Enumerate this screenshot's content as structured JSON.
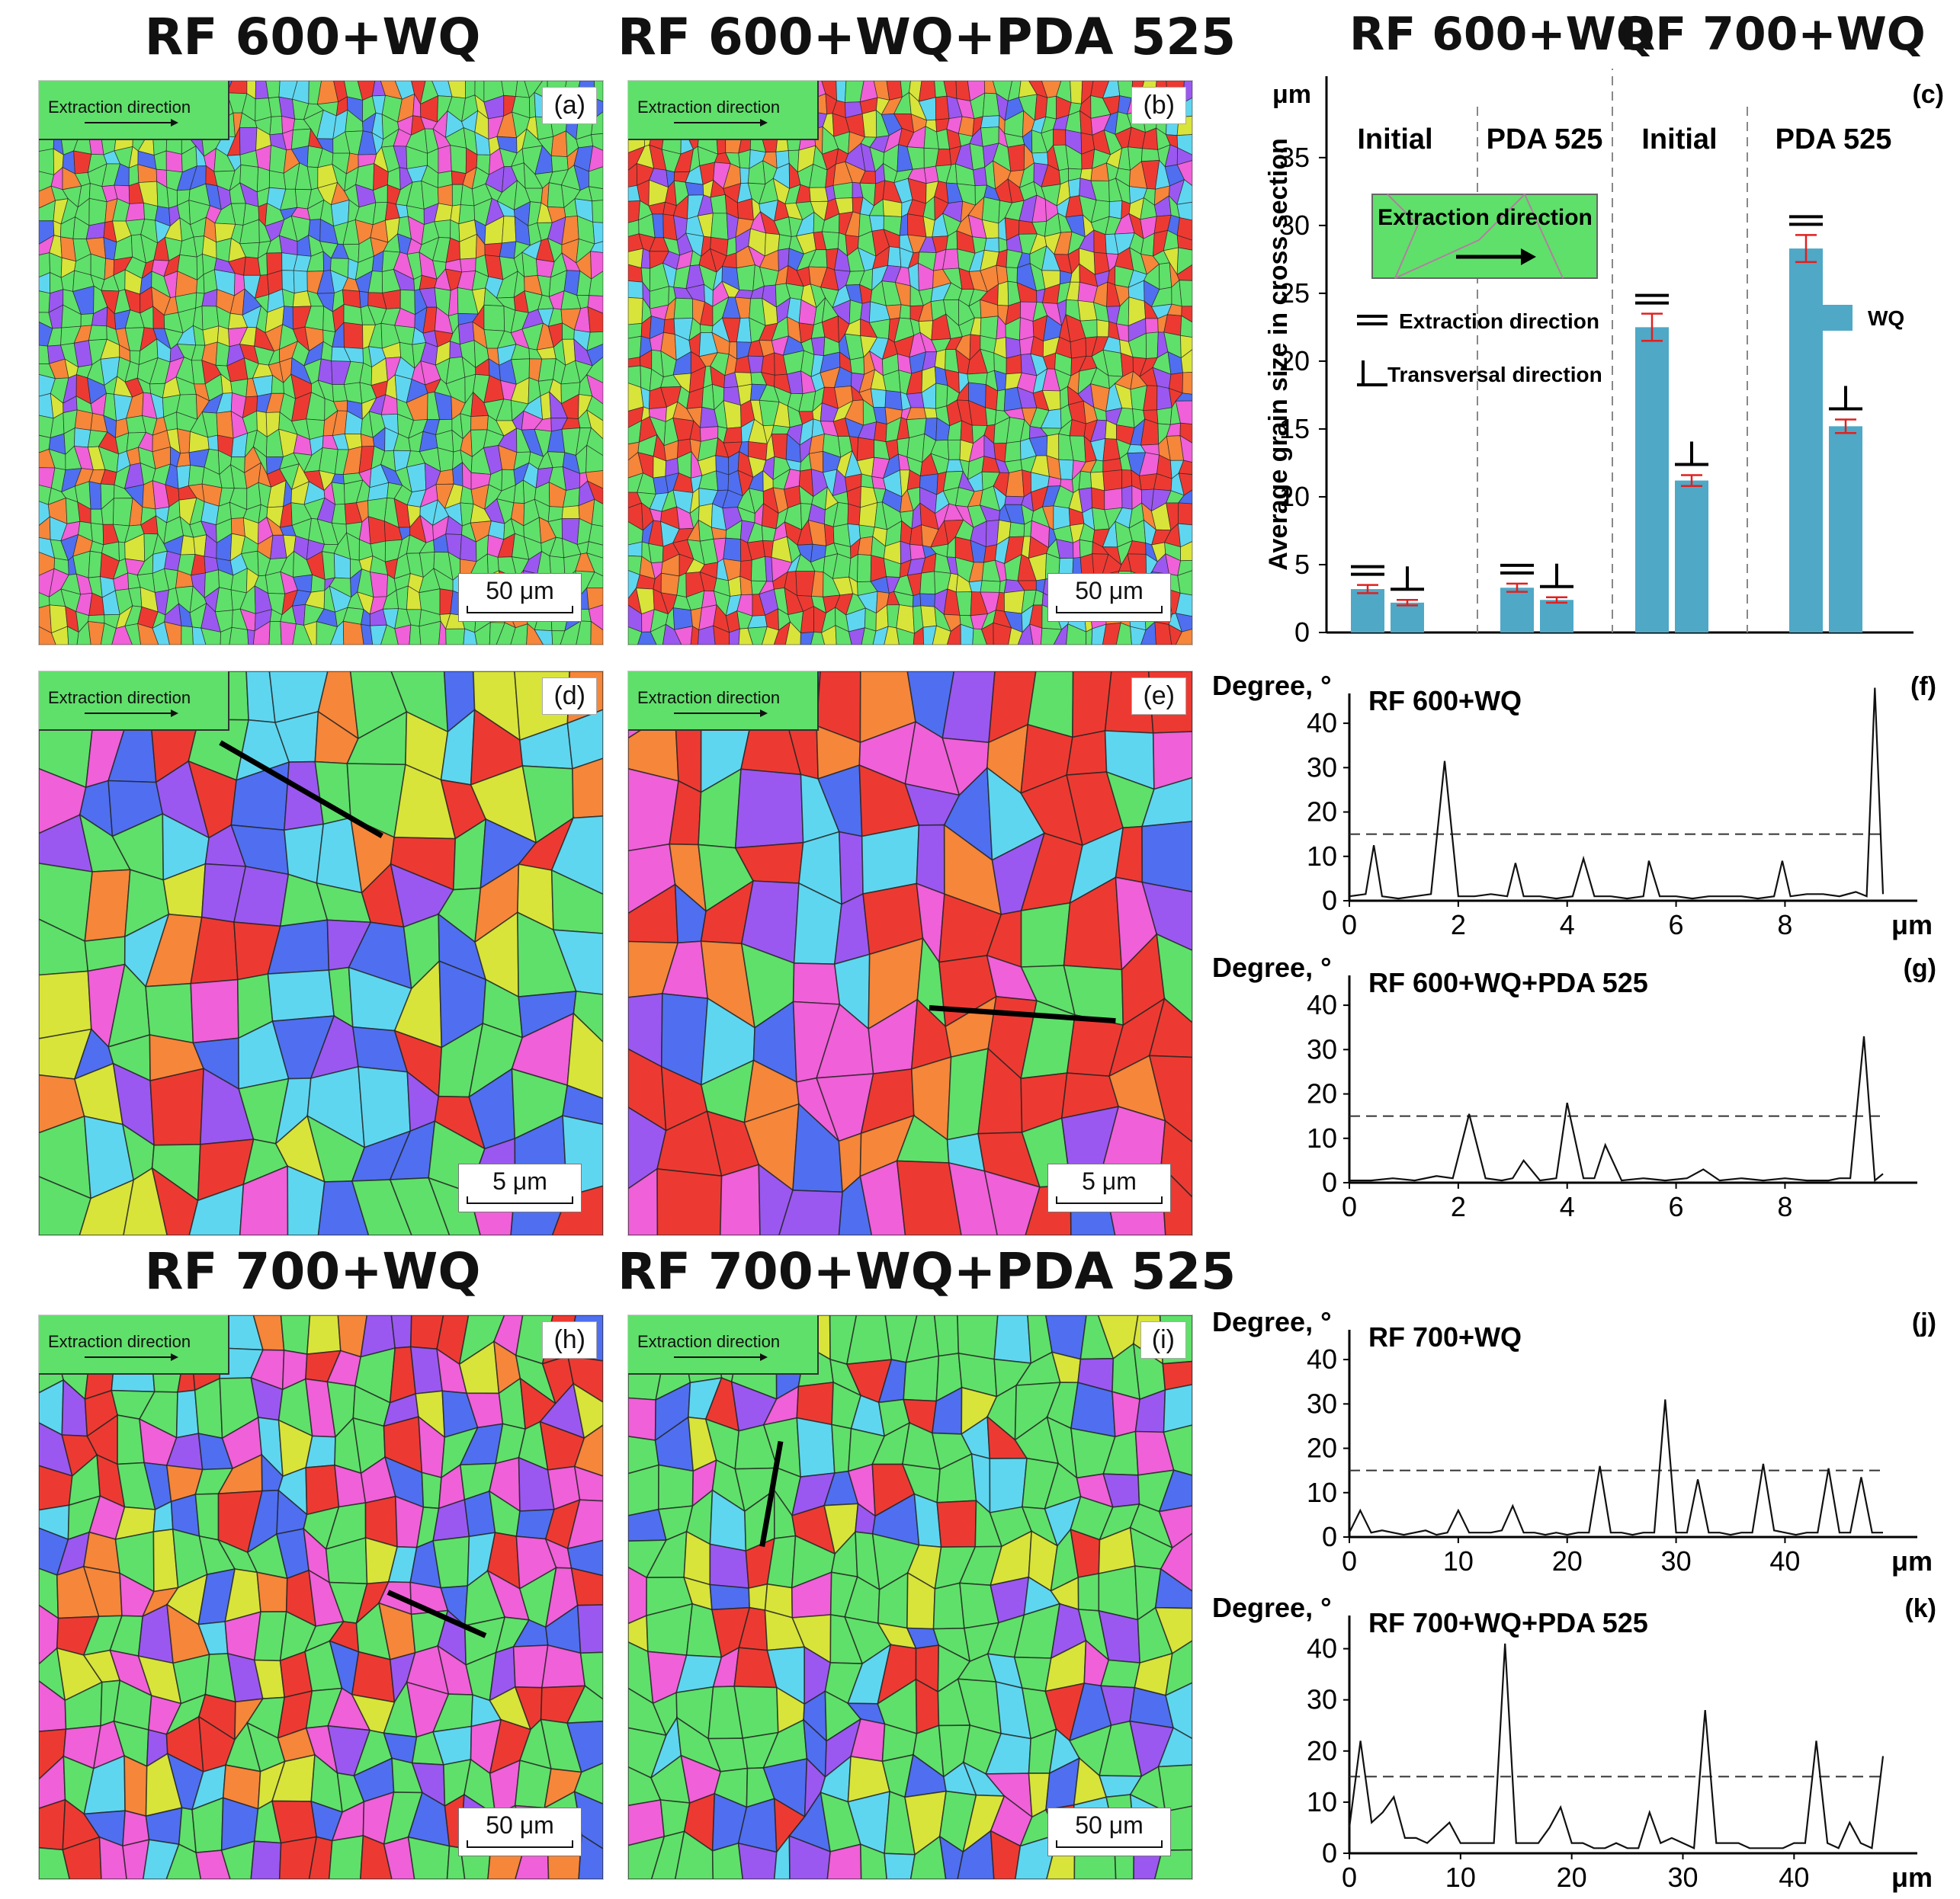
{
  "titles": {
    "a": "RF 600+WQ",
    "b": "RF 600+WQ+PDA 525",
    "c1": "RF 600+WQ",
    "c2": "RF 700+WQ",
    "h": "RF 700+WQ",
    "i": "RF 700+WQ+PDA 525"
  },
  "maps": {
    "extraction_label": "Extraction direction",
    "a": {
      "letter": "(a)",
      "scale": "50 μm"
    },
    "b": {
      "letter": "(b)",
      "scale": "50 μm"
    },
    "d": {
      "letter": "(d)",
      "scale": "5 μm"
    },
    "e": {
      "letter": "(e)",
      "scale": "5 μm"
    },
    "h": {
      "letter": "(h)",
      "scale": "50 μm"
    },
    "i": {
      "letter": "(i)",
      "scale": "50 μm"
    }
  },
  "colors": {
    "green": "#5fe06a",
    "red": "#ec3a32",
    "blue": "#4f6ff0",
    "pink": "#f060d8",
    "orange": "#f6863a",
    "cyan": "#5fd6f0",
    "violet": "#9a58f0",
    "yellow": "#d8e43a",
    "bar": "#4fa8c6",
    "errorbar": "#e02020"
  },
  "chart_data": [
    {
      "id": "c",
      "type": "bar",
      "letter": "(c)",
      "ylabel": "Average grain size in cross section",
      "yunit": "μm",
      "ylim": [
        0,
        40
      ],
      "yticks": [
        0,
        5,
        10,
        15,
        20,
        25,
        30,
        35
      ],
      "groups": [
        "Initial",
        "PDA 525",
        "Initial",
        "PDA 525"
      ],
      "legend": "WQ",
      "legend_extraction": "Extraction direction",
      "legend_transversal": "Transversal direction",
      "inset_label": "Extraction direction",
      "series": [
        {
          "name": "Extraction direction",
          "values": [
            3.2,
            3.3,
            22.5,
            28.3
          ],
          "errors": [
            0.3,
            0.3,
            1.0,
            1.0
          ]
        },
        {
          "name": "Transversal direction",
          "values": [
            2.2,
            2.4,
            11.2,
            15.2
          ],
          "errors": [
            0.2,
            0.2,
            0.4,
            0.5
          ]
        }
      ]
    },
    {
      "id": "f",
      "type": "line",
      "letter": "(f)",
      "title": "RF 600+WQ",
      "ylabel": "Degree, °",
      "xunit": "μm",
      "xlim": [
        0,
        9.8
      ],
      "ylim": [
        0,
        45
      ],
      "yticks": [
        0,
        10,
        20,
        30,
        40
      ],
      "xticks": [
        0,
        2,
        4,
        6,
        8
      ],
      "threshold": 15,
      "x": [
        0,
        0.3,
        0.45,
        0.6,
        0.9,
        1.2,
        1.5,
        1.75,
        2.0,
        2.3,
        2.6,
        2.9,
        3.05,
        3.2,
        3.5,
        3.8,
        4.1,
        4.3,
        4.5,
        4.8,
        5.1,
        5.4,
        5.5,
        5.7,
        6.0,
        6.3,
        6.6,
        6.9,
        7.2,
        7.5,
        7.8,
        7.95,
        8.1,
        8.4,
        8.7,
        9.0,
        9.3,
        9.5,
        9.65,
        9.8
      ],
      "y": [
        1,
        1.5,
        12.5,
        1,
        0.5,
        1,
        1.5,
        31.5,
        1,
        1,
        1.5,
        1,
        8.5,
        1,
        1,
        0.5,
        1,
        9.5,
        1,
        1,
        0.5,
        1,
        9,
        1,
        1,
        0.5,
        1,
        1,
        1,
        0.5,
        1,
        9,
        1,
        1.5,
        1.5,
        1,
        2,
        1,
        48,
        1.5
      ]
    },
    {
      "id": "g",
      "type": "line",
      "letter": "(g)",
      "title": "RF 600+WQ+PDA 525",
      "ylabel": "Degree, °",
      "xunit": "",
      "xlim": [
        0,
        9.8
      ],
      "ylim": [
        0,
        45
      ],
      "yticks": [
        0,
        10,
        20,
        30,
        40
      ],
      "xticks": [
        0,
        2,
        4,
        6,
        8
      ],
      "threshold": 15,
      "x": [
        0,
        0.4,
        0.8,
        1.2,
        1.6,
        1.9,
        2.2,
        2.5,
        2.8,
        3.0,
        3.2,
        3.5,
        3.8,
        4.0,
        4.3,
        4.5,
        4.7,
        5.0,
        5.4,
        5.8,
        6.2,
        6.5,
        6.8,
        7.2,
        7.6,
        8.0,
        8.4,
        8.8,
        9.0,
        9.2,
        9.45,
        9.65,
        9.8
      ],
      "y": [
        0.5,
        0.5,
        1,
        0.5,
        1.5,
        1,
        15.5,
        1,
        0.5,
        1,
        5,
        0.5,
        1,
        18,
        1,
        1,
        8.5,
        0.5,
        1,
        0.5,
        1,
        3,
        0.5,
        1,
        0.5,
        1,
        0.5,
        0.5,
        1,
        1,
        33,
        0.5,
        2
      ]
    },
    {
      "id": "j",
      "type": "line",
      "letter": "(j)",
      "title": "RF 700+WQ",
      "ylabel": "Degree, °",
      "xunit": "μm",
      "xlim": [
        0,
        49
      ],
      "ylim": [
        0,
        45
      ],
      "yticks": [
        0,
        10,
        20,
        30,
        40
      ],
      "xticks": [
        0,
        10,
        20,
        30,
        40
      ],
      "threshold": 15,
      "x": [
        0,
        1,
        2,
        3,
        4,
        5,
        6,
        7,
        8,
        9,
        10,
        11,
        12,
        13,
        14,
        15,
        16,
        17,
        18,
        19,
        20,
        21,
        22,
        23,
        24,
        25,
        26,
        27,
        28,
        29,
        30,
        31,
        32,
        33,
        34,
        35,
        36,
        37,
        38,
        39,
        40,
        41,
        42,
        43,
        44,
        45,
        46,
        47,
        48,
        49
      ],
      "y": [
        1,
        6,
        1,
        1.5,
        1,
        0.5,
        1,
        1.5,
        0.5,
        1,
        6,
        1,
        1,
        1,
        1.5,
        7,
        1,
        1,
        0.5,
        1,
        0.5,
        1,
        1,
        16,
        1,
        1,
        0.5,
        1,
        1,
        31,
        1,
        1,
        13,
        1,
        1,
        0.5,
        1,
        1,
        16.5,
        1.5,
        1,
        0.5,
        1,
        1,
        15.5,
        1,
        1,
        13.5,
        1,
        1
      ]
    },
    {
      "id": "k",
      "type": "line",
      "letter": "(k)",
      "title": "RF 700+WQ+PDA 525",
      "ylabel": "Degree, °",
      "xunit": "μm",
      "xlim": [
        0,
        48
      ],
      "ylim": [
        0,
        45
      ],
      "yticks": [
        0,
        10,
        20,
        30,
        40
      ],
      "xticks": [
        0,
        10,
        20,
        30,
        40
      ],
      "threshold": 15,
      "x": [
        0,
        1,
        2,
        3,
        4,
        5,
        6,
        7,
        8,
        9,
        10,
        11,
        12,
        13,
        14,
        15,
        16,
        17,
        18,
        19,
        20,
        21,
        22,
        23,
        24,
        25,
        26,
        27,
        28,
        29,
        30,
        31,
        32,
        33,
        34,
        35,
        36,
        37,
        38,
        39,
        40,
        41,
        42,
        43,
        44,
        45,
        46,
        47,
        48
      ],
      "y": [
        5,
        22,
        6,
        8,
        11,
        3,
        3,
        2,
        4,
        6,
        2,
        2,
        2,
        2,
        41,
        2,
        2,
        2,
        5,
        9,
        2,
        2,
        1,
        1,
        2,
        1,
        1,
        8,
        2,
        3,
        2,
        1,
        28,
        2,
        2,
        2,
        1,
        1,
        1,
        1,
        2,
        2,
        22,
        2,
        1,
        6,
        2,
        1,
        19
      ]
    }
  ]
}
